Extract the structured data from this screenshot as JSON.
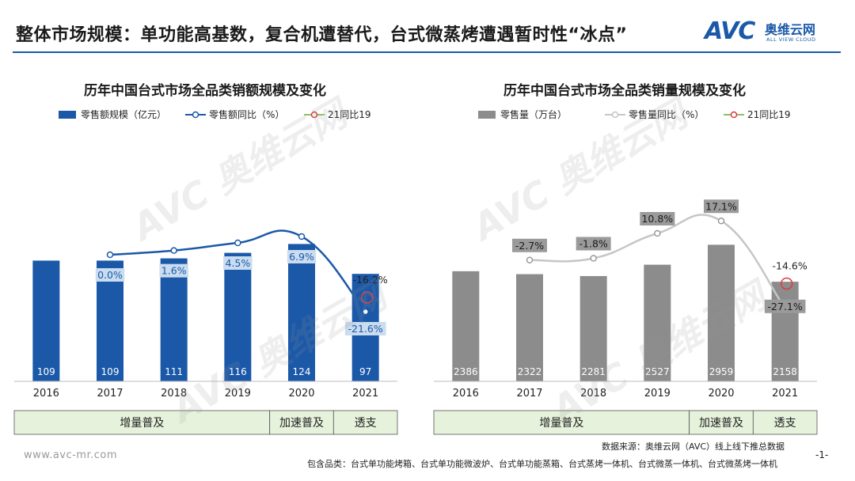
{
  "header": {
    "title": "整体市场规模：单功能高基数，复合机遭替代，台式微蒸烤遭遇暂时性“冰点”",
    "logo_mark": "AVC",
    "logo_cn": "奥维云网",
    "logo_en": "ALL VIEW CLOUD"
  },
  "watermark": {
    "mark": "AVC",
    "cn": "奥维云网",
    "en": "ALL VIEW CLOUD"
  },
  "footer": {
    "url": "www.avc-mr.com",
    "source": "数据来源：奥维云网（AVC）线上线下推总数据",
    "page": "-1-",
    "includes": "包含品类：台式单功能烤箱、台式单功能微波炉、台式单功能蒸箱、台式蒸烤一体机、台式微蒸一体机、台式微蒸烤一体机"
  },
  "colors": {
    "blue": "#1b59a8",
    "gray": "#8c8c8c",
    "line_gray": "#c6c6c6",
    "red": "#e03b3b",
    "phase_bg": "#e6f2dc"
  },
  "chart_data": [
    {
      "type": "bar",
      "title": "历年中国台式市场全品类销额规模及变化",
      "categories": [
        "2016",
        "2017",
        "2018",
        "2019",
        "2020",
        "2021"
      ],
      "legend": {
        "bar": "零售额规模（亿元）",
        "line": "零售额同比（%）",
        "marker": "21同比19"
      },
      "series": [
        {
          "name": "零售额规模（亿元）",
          "kind": "bar",
          "values": [
            109,
            109,
            111,
            116,
            124,
            97
          ],
          "labels": [
            "109",
            "109",
            "111",
            "116",
            "124",
            "97"
          ]
        },
        {
          "name": "零售额同比（%）",
          "kind": "line",
          "x": [
            "2017",
            "2018",
            "2019",
            "2020",
            "2021"
          ],
          "values": [
            0.0,
            1.6,
            4.5,
            6.9,
            -21.6
          ],
          "labels": [
            "0.0%",
            "1.6%",
            "4.5%",
            "6.9%",
            "-21.6%"
          ]
        }
      ],
      "annotation": {
        "category": "2021",
        "value": -16.2,
        "label": "-16.2%"
      },
      "ylim": [
        0,
        200
      ],
      "line_ylim": [
        -30,
        30
      ],
      "phases": [
        {
          "label": "增量普及",
          "span": 4
        },
        {
          "label": "加速普及",
          "span": 1
        },
        {
          "label": "透支",
          "span": 1
        }
      ]
    },
    {
      "type": "bar",
      "title": "历年中国台式市场全品类销量规模及变化",
      "categories": [
        "2016",
        "2017",
        "2018",
        "2019",
        "2020",
        "2021"
      ],
      "legend": {
        "bar": "零售量（万台）",
        "line": "零售量同比（%）",
        "marker": "21同比19"
      },
      "series": [
        {
          "name": "零售量（万台）",
          "kind": "bar",
          "values": [
            2386,
            2322,
            2281,
            2527,
            2959,
            2158
          ],
          "labels": [
            "2386",
            "2322",
            "2281",
            "2527",
            "2959",
            "2158"
          ]
        },
        {
          "name": "零售量同比（%）",
          "kind": "line",
          "x": [
            "2017",
            "2018",
            "2019",
            "2020",
            "2021"
          ],
          "values": [
            -2.7,
            -1.8,
            10.8,
            17.1,
            -27.1
          ],
          "labels": [
            "-2.7%",
            "-1.8%",
            "10.8%",
            "17.1%",
            "-27.1%"
          ]
        }
      ],
      "annotation": {
        "category": "2021",
        "value": -14.6,
        "label": "-14.6%"
      },
      "ylim": [
        0,
        4800
      ],
      "line_ylim": [
        -40,
        40
      ],
      "phases": [
        {
          "label": "增量普及",
          "span": 4
        },
        {
          "label": "加速普及",
          "span": 1
        },
        {
          "label": "透支",
          "span": 1
        }
      ]
    }
  ]
}
